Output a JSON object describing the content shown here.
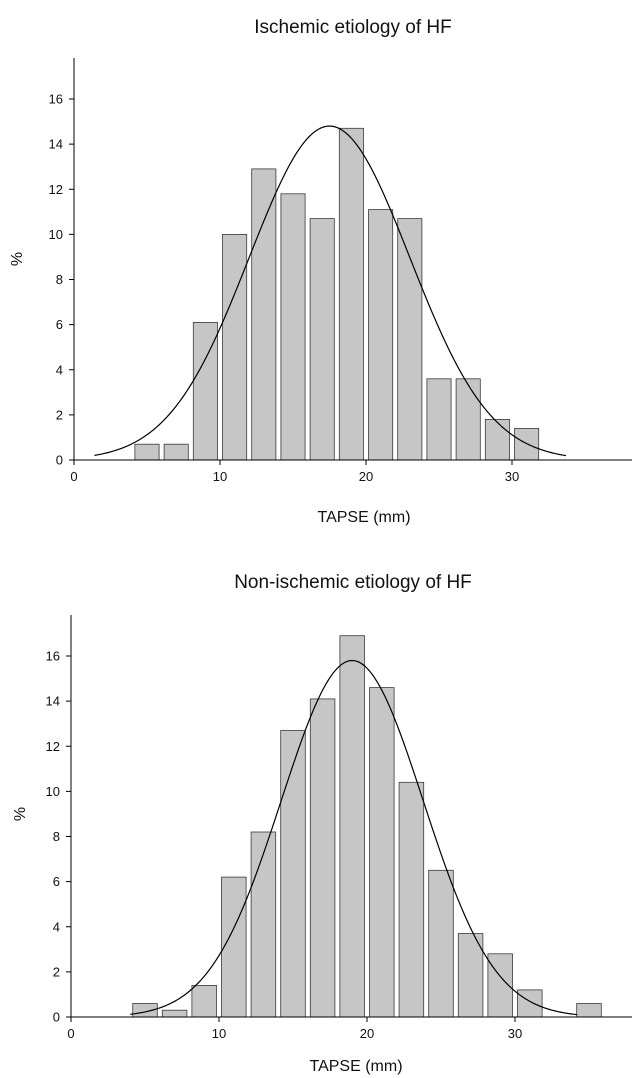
{
  "chart_data": [
    {
      "type": "bar",
      "title": "Ischemic etiology of HF",
      "xlabel": "TAPSE (mm)",
      "ylabel": "%",
      "xlim": [
        0,
        38
      ],
      "ylim": [
        0,
        18
      ],
      "xticks": [
        0,
        10,
        20,
        30
      ],
      "yticks": [
        0,
        2,
        4,
        6,
        8,
        10,
        12,
        14,
        16
      ],
      "bin_width": 2,
      "bins": [
        5,
        7,
        9,
        11,
        13,
        15,
        17,
        19,
        21,
        23,
        25,
        27,
        29,
        31
      ],
      "values": [
        0.7,
        0.7,
        6.1,
        10.0,
        12.9,
        11.8,
        10.7,
        14.7,
        11.1,
        10.7,
        3.6,
        3.6,
        1.8,
        1.4
      ],
      "fit_curve": {
        "type": "normal",
        "mean": 17.5,
        "sd": 5.5,
        "peak": 14.8,
        "x_range": [
          1.4,
          33.7
        ]
      }
    },
    {
      "type": "bar",
      "title": "Non-ischemic etiology of HF",
      "xlabel": "TAPSE (mm)",
      "ylabel": "%",
      "xlim": [
        0,
        38
      ],
      "ylim": [
        0,
        18
      ],
      "xticks": [
        0,
        10,
        20,
        30
      ],
      "yticks": [
        0,
        2,
        4,
        6,
        8,
        10,
        12,
        14,
        16
      ],
      "bin_width": 2,
      "bins": [
        5,
        7,
        9,
        11,
        13,
        15,
        17,
        19,
        21,
        23,
        25,
        27,
        29,
        31,
        35
      ],
      "values": [
        0.6,
        0.3,
        1.4,
        6.2,
        8.2,
        12.7,
        14.1,
        16.9,
        14.6,
        10.4,
        6.5,
        3.7,
        2.8,
        1.2,
        0.6
      ],
      "fit_curve": {
        "type": "normal",
        "mean": 19,
        "sd": 4.8,
        "peak": 15.8,
        "x_range": [
          4.0,
          34.2
        ]
      }
    }
  ]
}
